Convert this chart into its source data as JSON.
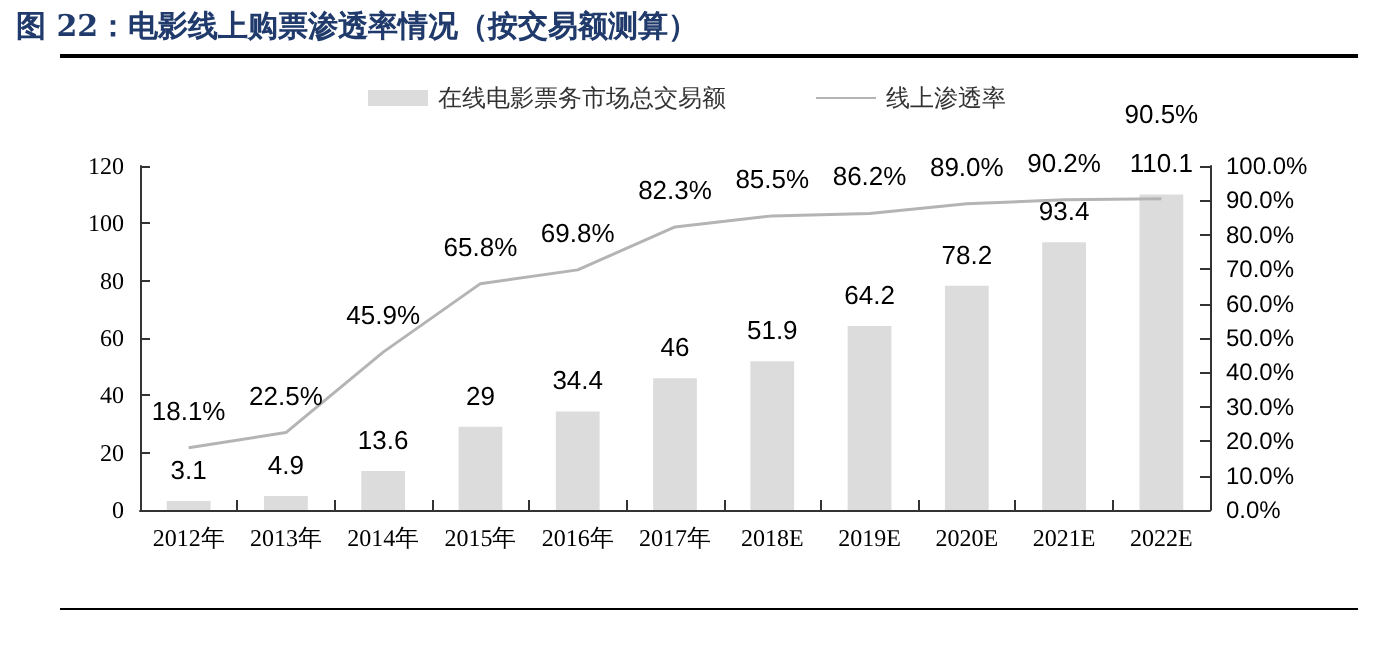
{
  "chart_data": {
    "type": "bar",
    "title": "图 22：电影线上购票渗透率情况（按交易额测算）",
    "categories": [
      "2012年",
      "2013年",
      "2014年",
      "2015年",
      "2016年",
      "2017年",
      "2018E",
      "2019E",
      "2020E",
      "2021E",
      "2022E"
    ],
    "series": [
      {
        "name": "在线电影票务市场总交易额",
        "color": "#dcdcdc",
        "values": [
          3.1,
          4.9,
          13.6,
          29,
          34.4,
          46,
          51.9,
          64.2,
          78.2,
          93.4,
          110.1
        ],
        "data_labels": true
      },
      {
        "name": "线上渗透率",
        "type": "line",
        "axis": "y2",
        "color": "#b4b4b4",
        "values": [
          18.1,
          22.5,
          45.9,
          65.8,
          69.8,
          82.3,
          85.5,
          86.2,
          89.0,
          90.2,
          90.5
        ],
        "value_labels": [
          "18.1%",
          "22.5%",
          "45.9%",
          "65.8%",
          "69.8%",
          "82.3%",
          "85.5%",
          "86.2%",
          "89.0%",
          "90.2%",
          "90.5%"
        ]
      }
    ],
    "ylim": [
      0,
      120
    ],
    "yticks": [
      0,
      20,
      40,
      60,
      80,
      100,
      120
    ],
    "y2lim": [
      0,
      100
    ],
    "y2ticks": [
      {
        "value": 0,
        "label": "0.0%"
      },
      {
        "value": 10,
        "label": "10.0%"
      },
      {
        "value": 20,
        "label": "20.0%"
      },
      {
        "value": 30,
        "label": "30.0%"
      },
      {
        "value": 40,
        "label": "40.0%"
      },
      {
        "value": 50,
        "label": "50.0%"
      },
      {
        "value": 60,
        "label": "60.0%"
      },
      {
        "value": 70,
        "label": "70.0%"
      },
      {
        "value": 80,
        "label": "80.0%"
      },
      {
        "value": 90,
        "label": "90.0%"
      },
      {
        "value": 100,
        "label": "100.0%"
      }
    ],
    "legend": "top",
    "grid": false,
    "marker": "none",
    "line_style": "solid"
  }
}
